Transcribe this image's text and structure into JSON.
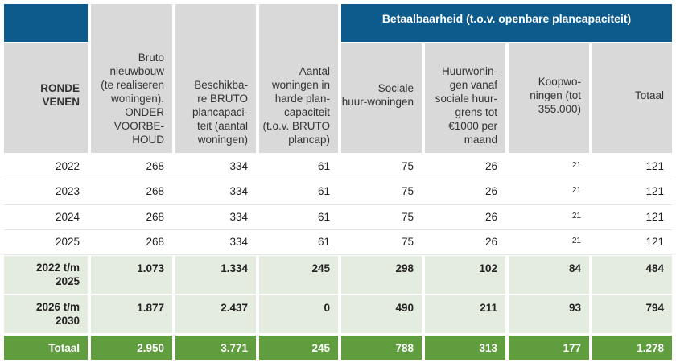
{
  "table": {
    "group_header": "Betaalbaarheid (t.o.v. openbare plancapaciteit)",
    "columns": [
      "RONDE VENEN",
      "Bruto nieuwbouw (te realiseren woningen). ONDER VOORBE-HOUD",
      "Beschikba-re BRUTO plancapaci-teit (aantal woningen)",
      "Aantal woningen in harde plan-capaciteit (t.o.v. BRUTO plancap)",
      "Sociale huur-woningen",
      "Huurwonin-gen vanaf sociale huur-grens tot €1000 per maand",
      "Koopwo-ningen (tot 355.000)",
      "Totaal"
    ],
    "column_lines": [
      [
        "RONDE",
        "VENEN"
      ],
      [
        "Bruto",
        "nieuwbouw",
        "(te realiseren",
        "woningen).",
        "ONDER",
        "VOORBE-",
        "HOUD"
      ],
      [
        "Beschikba-",
        "re BRUTO",
        "plancapaci-",
        "teit (aantal",
        "woningen)"
      ],
      [
        "Aantal",
        "woningen in",
        "harde plan-",
        "capaciteit",
        "(t.o.v. BRUTO",
        "plancap)"
      ],
      [
        "Sociale",
        "huur-woningen"
      ],
      [
        "Huurwonin-",
        "gen vanaf",
        "sociale huur-",
        "grens tot",
        "€1000 per",
        "maand"
      ],
      [
        "Koopwo-",
        "ningen (tot",
        "355.000)"
      ],
      [
        "Totaal"
      ]
    ],
    "rows": [
      [
        "2022",
        "268",
        "334",
        "61",
        "75",
        "26",
        "21",
        "121"
      ],
      [
        "2023",
        "268",
        "334",
        "61",
        "75",
        "26",
        "21",
        "121"
      ],
      [
        "2024",
        "268",
        "334",
        "61",
        "75",
        "26",
        "21",
        "121"
      ],
      [
        "2025",
        "268",
        "334",
        "61",
        "75",
        "26",
        "21",
        "121"
      ]
    ],
    "subtotals": [
      {
        "label_lines": [
          "2022 t/m",
          "2025"
        ],
        "values": [
          "1.073",
          "1.334",
          "245",
          "298",
          "102",
          "84",
          "484"
        ]
      },
      {
        "label_lines": [
          "2026 t/m",
          "2030"
        ],
        "values": [
          "1.877",
          "2.437",
          "0",
          "490",
          "211",
          "93",
          "794"
        ]
      }
    ],
    "total": {
      "label": "Totaal",
      "values": [
        "2.950",
        "3.771",
        "245",
        "788",
        "313",
        "177",
        "1.278"
      ]
    }
  },
  "colors": {
    "header_blue": "#0d5a8c",
    "header_grey": "#d9d9d9",
    "subtotal_bg": "#e4ecdf",
    "total_green": "#5f9d3e"
  }
}
